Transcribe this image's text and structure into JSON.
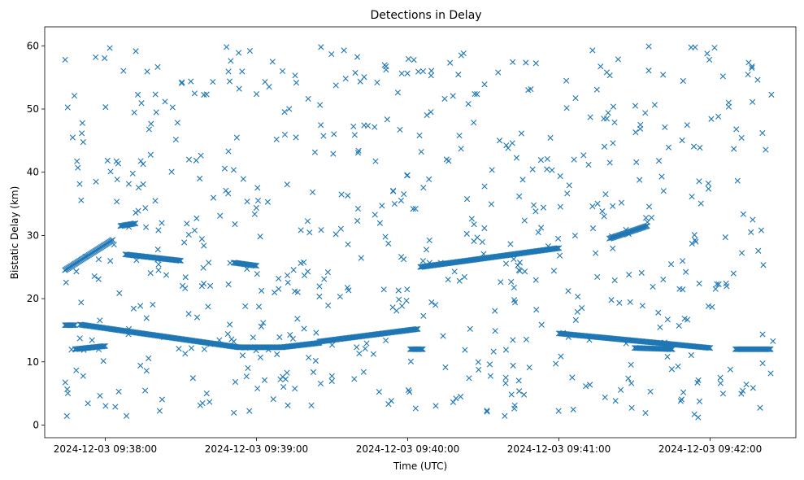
{
  "chart_data": {
    "type": "scatter",
    "title": "Detections in Delay",
    "xlabel": "Time (UTC)",
    "ylabel": "Bistatic Delay (km)",
    "marker": "x",
    "color": "#1f77b4",
    "grid": false,
    "legend": "none",
    "x_range": [
      "2024-12-03 09:37:36",
      "2024-12-03 09:42:34"
    ],
    "ylim": [
      -2,
      63
    ],
    "x_ticks": [
      "2024-12-03 09:38:00",
      "2024-12-03 09:39:00",
      "2024-12-03 09:40:00",
      "2024-12-03 09:41:00",
      "2024-12-03 09:42:00"
    ],
    "y_ticks": [
      0,
      10,
      20,
      30,
      40,
      50,
      60
    ],
    "start_time": "2024-12-03 09:37:44",
    "end_time": "2024-12-03 09:42:25",
    "tracks": [
      {
        "from": [
          "2024-12-03 09:37:44",
          24.5
        ],
        "to": [
          "2024-12-03 09:38:03",
          29.3
        ]
      },
      {
        "from": [
          "2024-12-03 09:38:06",
          31.5
        ],
        "to": [
          "2024-12-03 09:38:12",
          31.9
        ]
      },
      {
        "from": [
          "2024-12-03 09:38:08",
          27.0
        ],
        "to": [
          "2024-12-03 09:38:30",
          26.0
        ]
      },
      {
        "from": [
          "2024-12-03 09:38:51",
          25.7
        ],
        "to": [
          "2024-12-03 09:39:00",
          25.2
        ]
      },
      {
        "from": [
          "2024-12-03 09:37:44",
          15.8
        ],
        "to": [
          "2024-12-03 09:37:48",
          15.8
        ]
      },
      {
        "from": [
          "2024-12-03 09:37:50",
          15.9
        ],
        "to": [
          "2024-12-03 09:38:53",
          12.3
        ]
      },
      {
        "from": [
          "2024-12-03 09:38:53",
          12.3
        ],
        "to": [
          "2024-12-03 09:39:10",
          12.3
        ]
      },
      {
        "from": [
          "2024-12-03 09:39:10",
          12.3
        ],
        "to": [
          "2024-12-03 09:39:25",
          13.0
        ]
      },
      {
        "from": [
          "2024-12-03 09:39:25",
          13.2
        ],
        "to": [
          "2024-12-03 09:40:04",
          15.2
        ]
      },
      {
        "from": [
          "2024-12-03 09:40:01",
          12.0
        ],
        "to": [
          "2024-12-03 09:40:06",
          12.0
        ]
      },
      {
        "from": [
          "2024-12-03 09:37:48",
          12.0
        ],
        "to": [
          "2024-12-03 09:38:00",
          12.5
        ]
      },
      {
        "from": [
          "2024-12-03 09:40:05",
          25.0
        ],
        "to": [
          "2024-12-03 09:41:00",
          28.0
        ]
      },
      {
        "from": [
          "2024-12-03 09:41:00",
          14.5
        ],
        "to": [
          "2024-12-03 09:42:00",
          12.2
        ]
      },
      {
        "from": [
          "2024-12-03 09:41:30",
          12.2
        ],
        "to": [
          "2024-12-03 09:41:45",
          12.0
        ]
      },
      {
        "from": [
          "2024-12-03 09:42:10",
          12.0
        ],
        "to": [
          "2024-12-03 09:42:24",
          12.0
        ]
      },
      {
        "from": [
          "2024-12-03 09:41:20",
          29.5
        ],
        "to": [
          "2024-12-03 09:41:35",
          31.5
        ]
      }
    ],
    "scatter_points_estimate": 650
  }
}
